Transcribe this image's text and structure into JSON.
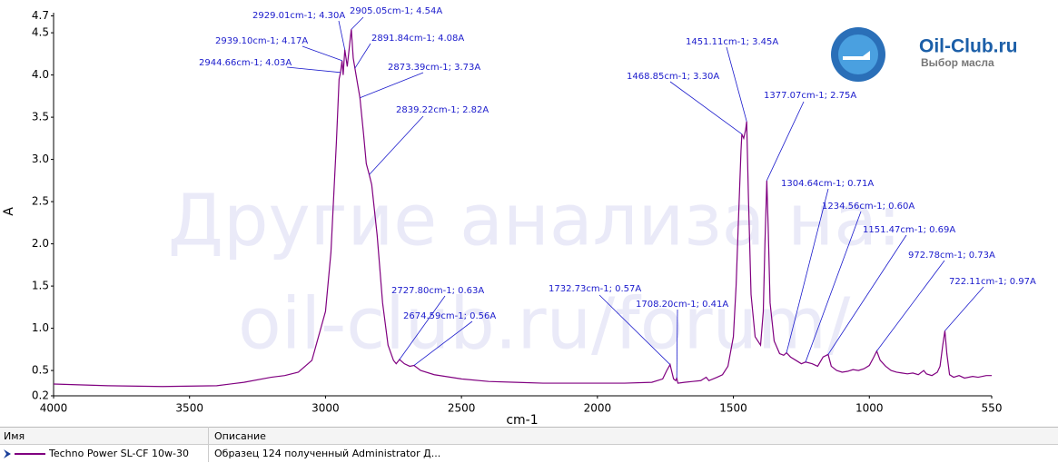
{
  "chart_data": {
    "type": "line",
    "x_label": "cm-1",
    "y_label": "A",
    "xlim": [
      4000,
      550
    ],
    "ylim": [
      0.2,
      4.7
    ],
    "xticks": [
      4000,
      3500,
      3000,
      2500,
      2000,
      1500,
      1000,
      550
    ],
    "yticks": [
      0.2,
      0.5,
      {
        "value": 1,
        "label": "1.0"
      },
      1.5,
      {
        "value": 2,
        "label": "2.0"
      },
      2.5,
      {
        "value": 3,
        "label": "3.0"
      },
      3.5,
      {
        "value": 4,
        "label": "4.0"
      },
      4.5,
      4.7
    ],
    "x": [
      4000,
      3800,
      3600,
      3400,
      3300,
      3200,
      3150,
      3100,
      3050,
      3000,
      2980,
      2960,
      2950,
      2944.66,
      2939.1,
      2935,
      2929.01,
      2920,
      2910,
      2905.05,
      2898,
      2891.84,
      2885,
      2873.39,
      2860,
      2850,
      2839.22,
      2830,
      2810,
      2790,
      2770,
      2750,
      2740,
      2727.8,
      2710,
      2690,
      2674.59,
      2650,
      2600,
      2500,
      2400,
      2300,
      2200,
      2100,
      2000,
      1900,
      1800,
      1760,
      1745,
      1732.73,
      1720,
      1712,
      1708.2,
      1704,
      1680,
      1650,
      1620,
      1600,
      1590,
      1560,
      1540,
      1520,
      1500,
      1490,
      1480,
      1472,
      1468.85,
      1462,
      1455,
      1451.11,
      1445,
      1435,
      1420,
      1400,
      1390,
      1384,
      1377.07,
      1372,
      1365,
      1350,
      1330,
      1315,
      1304.64,
      1290,
      1270,
      1250,
      1234.56,
      1210,
      1190,
      1170,
      1151.47,
      1140,
      1120,
      1100,
      1080,
      1060,
      1040,
      1020,
      1000,
      985,
      972.78,
      960,
      940,
      920,
      900,
      880,
      860,
      840,
      820,
      800,
      790,
      770,
      750,
      740,
      730,
      722.11,
      715,
      705,
      690,
      670,
      650,
      620,
      600,
      570,
      550
    ],
    "series": [
      {
        "name": "Techno Power SL-CF 10w-30",
        "color": "#800080",
        "values": [
          0.34,
          0.32,
          0.31,
          0.32,
          0.36,
          0.42,
          0.44,
          0.48,
          0.62,
          1.2,
          1.9,
          3.2,
          3.95,
          4.03,
          4.17,
          4.0,
          4.3,
          4.1,
          4.4,
          4.54,
          4.2,
          4.08,
          3.95,
          3.73,
          3.3,
          2.95,
          2.82,
          2.7,
          2.1,
          1.3,
          0.8,
          0.62,
          0.58,
          0.63,
          0.58,
          0.55,
          0.56,
          0.5,
          0.45,
          0.4,
          0.37,
          0.36,
          0.35,
          0.35,
          0.35,
          0.35,
          0.36,
          0.4,
          0.5,
          0.57,
          0.4,
          0.38,
          0.41,
          0.35,
          0.36,
          0.37,
          0.38,
          0.42,
          0.38,
          0.42,
          0.45,
          0.55,
          0.9,
          1.5,
          2.4,
          3.1,
          3.3,
          3.25,
          3.35,
          3.45,
          2.6,
          1.4,
          0.9,
          0.8,
          1.2,
          2.0,
          2.75,
          2.2,
          1.3,
          0.85,
          0.7,
          0.68,
          0.71,
          0.66,
          0.62,
          0.58,
          0.6,
          0.58,
          0.55,
          0.66,
          0.69,
          0.55,
          0.5,
          0.48,
          0.49,
          0.51,
          0.5,
          0.52,
          0.56,
          0.65,
          0.73,
          0.62,
          0.55,
          0.5,
          0.48,
          0.47,
          0.46,
          0.47,
          0.45,
          0.5,
          0.46,
          0.44,
          0.48,
          0.55,
          0.8,
          0.97,
          0.7,
          0.45,
          0.42,
          0.44,
          0.41,
          0.43,
          0.42,
          0.44,
          0.44
        ]
      }
    ],
    "annotations": [
      {
        "x": 2944.66,
        "y": 4.03,
        "label": "2944.66cm-1; 4.03A"
      },
      {
        "x": 2939.1,
        "y": 4.17,
        "label": "2939.10cm-1; 4.17A"
      },
      {
        "x": 2929.01,
        "y": 4.3,
        "label": "2929.01cm-1; 4.30A"
      },
      {
        "x": 2905.05,
        "y": 4.54,
        "label": "2905.05cm-1; 4.54A"
      },
      {
        "x": 2891.84,
        "y": 4.08,
        "label": "2891.84cm-1; 4.08A"
      },
      {
        "x": 2873.39,
        "y": 3.73,
        "label": "2873.39cm-1; 3.73A"
      },
      {
        "x": 2839.22,
        "y": 2.82,
        "label": "2839.22cm-1; 2.82A"
      },
      {
        "x": 2727.8,
        "y": 0.63,
        "label": "2727.80cm-1; 0.63A"
      },
      {
        "x": 2674.59,
        "y": 0.56,
        "label": "2674.59cm-1; 0.56A"
      },
      {
        "x": 1732.73,
        "y": 0.57,
        "label": "1732.73cm-1; 0.57A"
      },
      {
        "x": 1708.2,
        "y": 0.41,
        "label": "1708.20cm-1; 0.41A"
      },
      {
        "x": 1468.85,
        "y": 3.3,
        "label": "1468.85cm-1; 3.30A"
      },
      {
        "x": 1451.11,
        "y": 3.45,
        "label": "1451.11cm-1; 3.45A"
      },
      {
        "x": 1377.07,
        "y": 2.75,
        "label": "1377.07cm-1; 2.75A"
      },
      {
        "x": 1304.64,
        "y": 0.71,
        "label": "1304.64cm-1; 0.71A"
      },
      {
        "x": 1234.56,
        "y": 0.6,
        "label": "1234.56cm-1; 0.60A"
      },
      {
        "x": 1151.47,
        "y": 0.69,
        "label": "1151.47cm-1; 0.69A"
      },
      {
        "x": 972.78,
        "y": 0.73,
        "label": "972.78cm-1; 0.73A"
      },
      {
        "x": 722.11,
        "y": 0.97,
        "label": "722.11cm-1; 0.97A"
      }
    ]
  },
  "watermark": [
    "Другие анализа на:",
    "oil-club.ru/forum/"
  ],
  "logo": {
    "title": "Oil-Club.ru",
    "subtitle": "Выбор масла"
  },
  "table": {
    "columns": [
      "Имя",
      "Описание"
    ],
    "description": "Образец 124 полученный Administrator Д..."
  }
}
